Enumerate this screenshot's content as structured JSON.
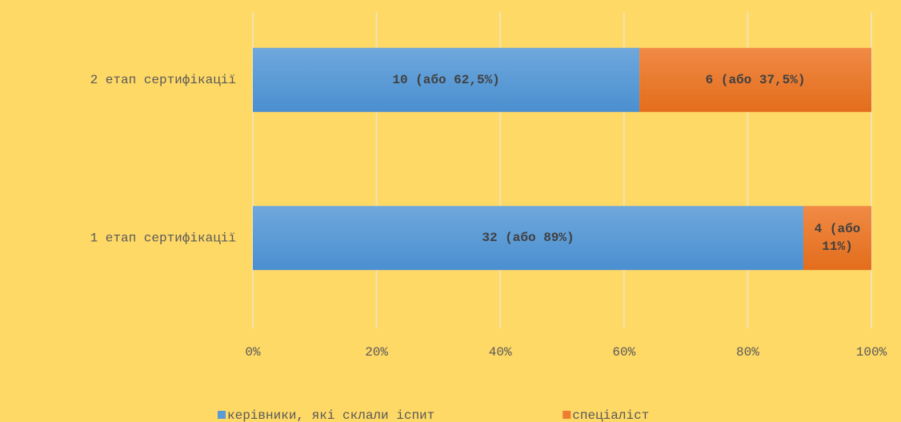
{
  "chart_data": {
    "type": "bar",
    "orientation": "horizontal",
    "stacked": true,
    "categories": [
      "1 етап сертифікації",
      "2 етап сертифікації"
    ],
    "series": [
      {
        "name": "керівники, які склали іспит",
        "color": "#5b9bd5",
        "values": [
          89,
          62.5
        ],
        "value_labels": [
          "32 (або 89%)",
          "10 (або 62,5%)"
        ]
      },
      {
        "name": "спеціаліст",
        "color": "#ed7d31",
        "values": [
          11,
          37.5
        ],
        "value_labels": [
          "4  (або 11%)",
          "6 (або 37,5%)"
        ]
      }
    ],
    "xlim": [
      0,
      100
    ],
    "xticks": [
      {
        "value": 0,
        "label": "0%"
      },
      {
        "value": 20,
        "label": "20%"
      },
      {
        "value": 40,
        "label": "40%"
      },
      {
        "value": 60,
        "label": "60%"
      },
      {
        "value": 80,
        "label": "80%"
      },
      {
        "value": 100,
        "label": "100%"
      }
    ],
    "grid": true,
    "legend": "bottom"
  }
}
